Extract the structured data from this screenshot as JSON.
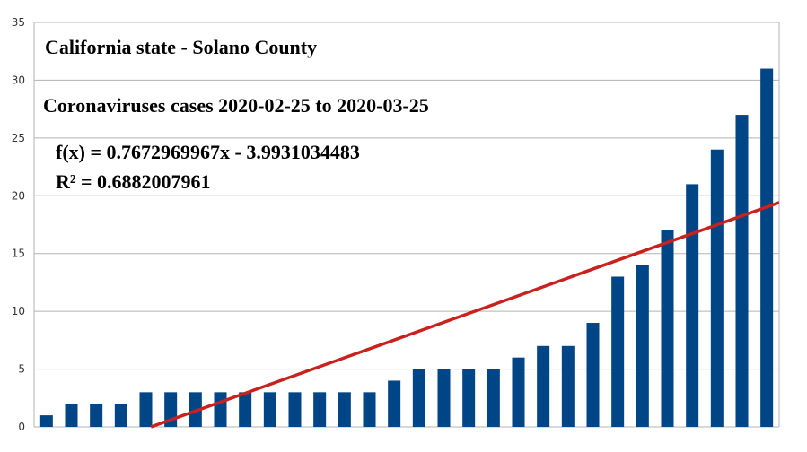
{
  "chart_data": {
    "type": "bar",
    "title": "California state - Solano County",
    "subtitle": "Coronaviruses cases 2020-02-25 to 2020-03-25",
    "annotations": [
      "f(x) = 0.7672969967x - 3.9931034483",
      "R² = 0.6882007961"
    ],
    "xlabel": "",
    "ylabel": "",
    "ylim": [
      0,
      35
    ],
    "yticks": [
      0,
      5,
      10,
      15,
      20,
      25,
      30,
      35
    ],
    "grid": true,
    "legend": "none",
    "values": [
      1,
      2,
      2,
      2,
      3,
      3,
      3,
      3,
      3,
      3,
      3,
      3,
      3,
      3,
      4,
      5,
      5,
      5,
      5,
      6,
      7,
      7,
      9,
      13,
      14,
      17,
      21,
      24,
      27,
      31
    ],
    "trendline": {
      "type": "linear",
      "slope": 0.7672969967,
      "intercept": -3.9931034483,
      "r2": 0.6882007961
    },
    "colors": {
      "bar": "#004586",
      "trendline": "#c9211e",
      "grid": "#b3b3b3"
    }
  }
}
